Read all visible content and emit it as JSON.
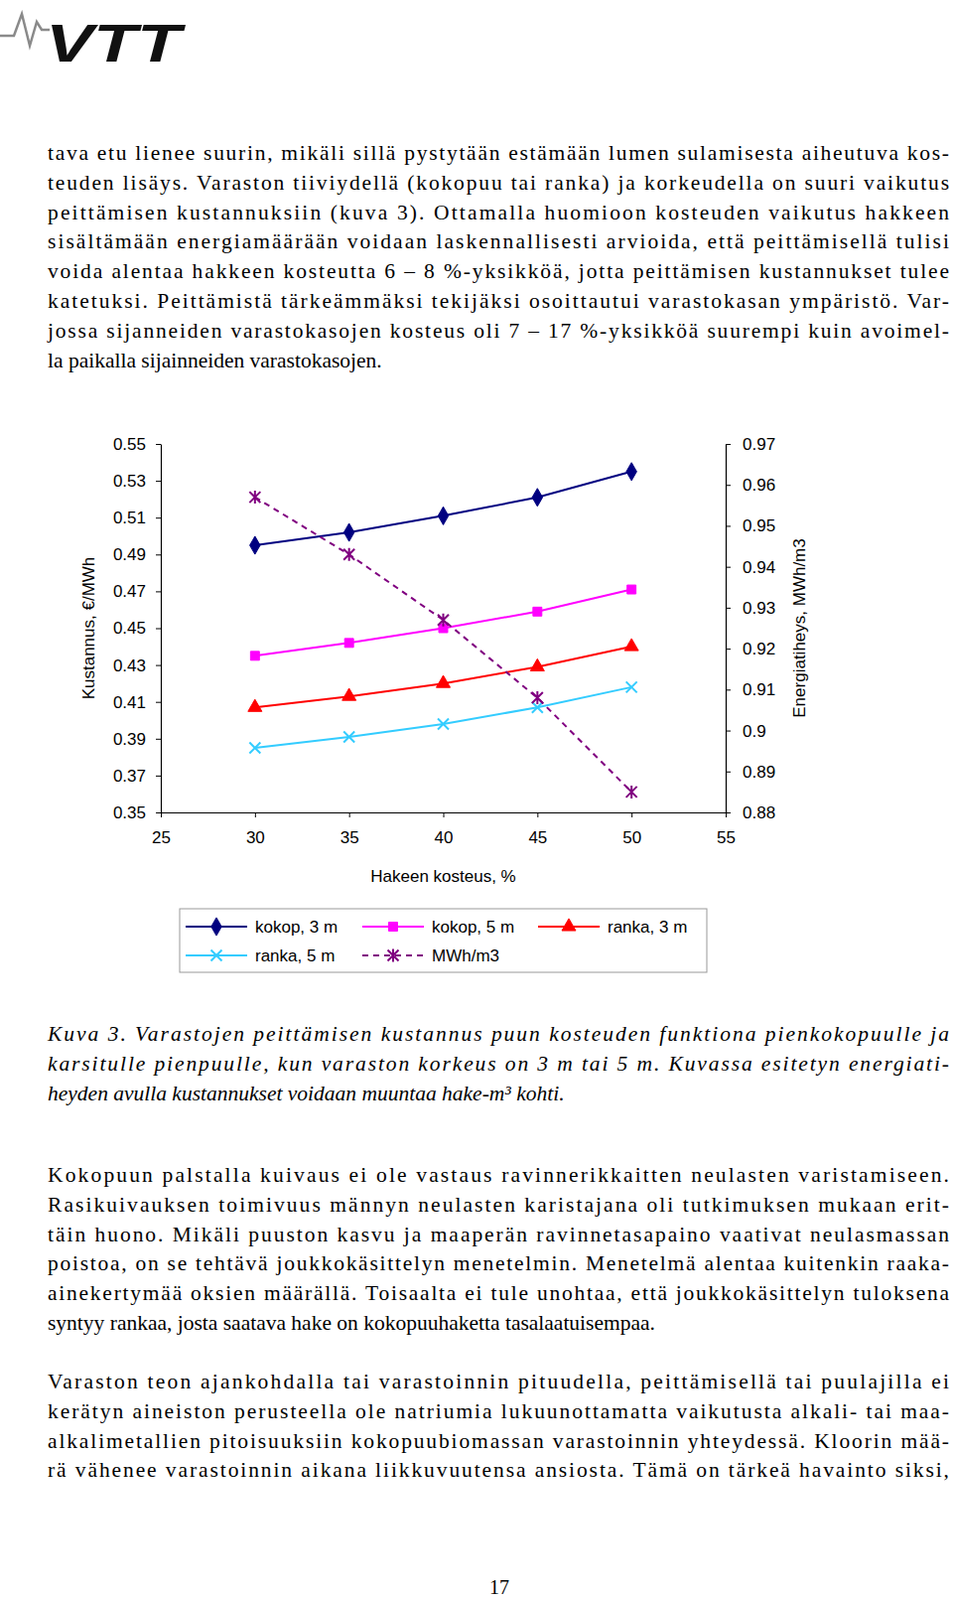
{
  "logo": "VTT",
  "top_paragraphs": [
    [
      "tava etu lienee suurin, mikäli sillä pystytään estämään lumen sulamisesta aiheutuva kos-",
      "teuden lisäys. Varaston tiiviydellä (kokopuu tai ranka) ja korkeudella on suuri vaikutus",
      "peittämisen kustannuksiin (kuva 3). Ottamalla huomioon kosteuden vaikutus hakkeen",
      "sisältämään energiamäärään voidaan laskennallisesti arvioida, että peittämisellä tulisi",
      "voida alentaa hakkeen kosteutta 6 – 8 %-yksikköä, jotta peittämisen kustannukset tulee",
      "katetuksi. Peittämistä tärkeämmäksi tekijäksi osoittautui varastokasan ympäristö. Var-",
      "jossa sijanneiden varastokasojen kosteus oli 7 – 17 %-yksikköä suurempi kuin avoimel-",
      "la paikalla sijainneiden varastokasojen."
    ]
  ],
  "chart_data": {
    "type": "line",
    "xlabel": "Hakeen kosteus, %",
    "ylabel": "Kustannus, €/MWh",
    "y2label": "Energiatiheys, MWh/m3",
    "x": [
      30,
      35,
      40,
      45,
      50
    ],
    "xlim": [
      25,
      55
    ],
    "xticks": [
      25,
      30,
      35,
      40,
      45,
      50,
      55
    ],
    "ylim": [
      0.35,
      0.55
    ],
    "yticks": [
      0.35,
      0.37,
      0.39,
      0.41,
      0.43,
      0.45,
      0.47,
      0.49,
      0.51,
      0.53,
      0.55
    ],
    "y2lim": [
      0.88,
      0.97
    ],
    "y2ticks": [
      0.88,
      0.89,
      0.9,
      0.91,
      0.92,
      0.93,
      0.94,
      0.95,
      0.96,
      0.97
    ],
    "legend": "bottom",
    "series": [
      {
        "name": "kokop, 3 m",
        "color": "#000080",
        "marker": "diamond",
        "line_style": "solid",
        "values": [
          0.495,
          0.502,
          0.511,
          0.521,
          0.535
        ]
      },
      {
        "name": "kokop, 5 m",
        "color": "#ff00ff",
        "marker": "square",
        "line_style": "solid",
        "values": [
          0.435,
          0.442,
          0.45,
          0.459,
          0.471
        ]
      },
      {
        "name": "ranka, 3 m",
        "color": "#ff0000",
        "marker": "triangle",
        "line_style": "solid",
        "values": [
          0.407,
          0.413,
          0.42,
          0.429,
          0.44
        ]
      },
      {
        "name": "ranka, 5 m",
        "color": "#33ccff",
        "marker": "x",
        "line_style": "solid",
        "values": [
          0.385,
          0.391,
          0.398,
          0.407,
          0.418
        ]
      },
      {
        "name": "MWh/m3",
        "color": "#800080",
        "marker": "asterisk",
        "line_style": "dashed",
        "axis": "y2",
        "values": [
          0.957,
          0.943,
          0.927,
          0.908,
          0.885
        ]
      }
    ]
  },
  "caption": [
    "Kuva 3. Varastojen peittämisen kustannus puun kosteuden funktiona pienkokopuulle ja",
    "karsitulle pienpuulle, kun varaston korkeus on 3 m tai 5 m. Kuvassa esitetyn energiati-",
    "heyden avulla kustannukset voidaan muuntaa hake-m³ kohti."
  ],
  "bottom_paragraphs": [
    [
      "Kokopuun palstalla kuivaus ei ole vastaus ravinnerikkaitten neulasten varistamiseen.",
      "Rasikuivauksen toimivuus männyn neulasten karistajana oli tutkimuksen mukaan erit-",
      "täin huono. Mikäli puuston kasvu ja maaperän ravinnetasapaino vaativat neulasmassan",
      "poistoa, on se tehtävä joukkokäsittelyn menetelmin. Menetelmä alentaa kuitenkin raaka-",
      "ainekertymää oksien määrällä. Toisaalta ei tule unohtaa, että joukkokäsittelyn tuloksena",
      "syntyy rankaa, josta saatava hake on kokopuuhaketta tasalaatuisempaa."
    ],
    [
      "Varaston teon ajankohdalla tai varastoinnin pituudella, peittämisellä tai puulajilla ei",
      "kerätyn aineiston perusteella ole natriumia lukuunottamatta vaikutusta alkali- tai maa-",
      "alkalimetallien pitoisuuksiin kokopuubiomassan varastoinnin yhteydessä. Kloorin mää-",
      "rä vähenee varastoinnin aikana liikkuvuutensa ansiosta. Tämä on tärkeä havainto siksi,"
    ]
  ],
  "page_number": "17"
}
